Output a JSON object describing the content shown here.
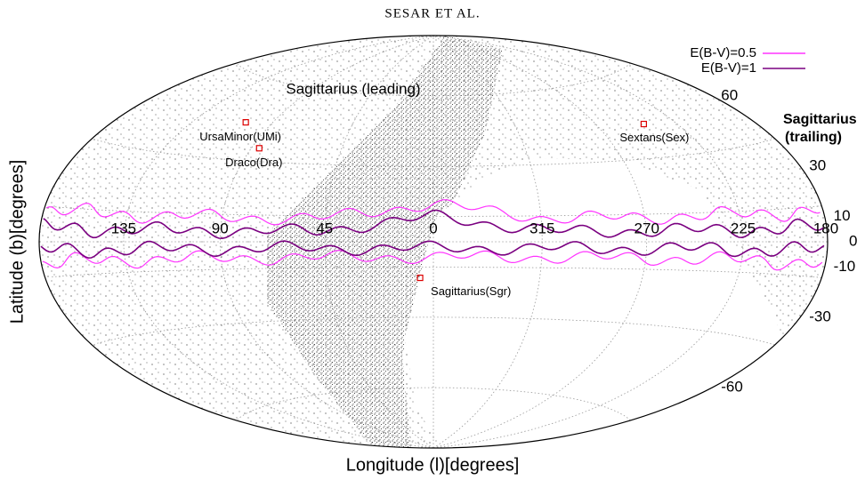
{
  "header": "SESAR ET AL.",
  "chart_data": {
    "type": "sky-map",
    "projection": "hammer",
    "xlabel": "Longitude (l)[degrees]",
    "ylabel": "Latitude (b)[degrees]",
    "xticks": [
      135,
      90,
      45,
      0,
      315,
      270,
      225,
      180
    ],
    "yticks": [
      60,
      30,
      10,
      0,
      -10,
      -30,
      -60
    ],
    "ylim": [
      -90,
      90
    ],
    "grid": true,
    "legend": "top-right",
    "series": [
      {
        "name": "E(B-V)=0.5",
        "color": "#ff33ff"
      },
      {
        "name": "E(B-V)=1",
        "color": "#7a0080"
      }
    ],
    "objects": [
      {
        "label": "UrsaMinor(UMi)",
        "l": 105,
        "b": 44
      },
      {
        "label": "Draco(Dra)",
        "l": 86,
        "b": 35
      },
      {
        "label": "Sextans(Sex)",
        "l": 243.5,
        "b": 42.3
      },
      {
        "label": "Sagittarius(Sgr)",
        "l": 5.6,
        "b": -14.2
      }
    ],
    "annotations": [
      "Sagittarius (leading)",
      "Sagittarius",
      "(trailing)"
    ]
  }
}
